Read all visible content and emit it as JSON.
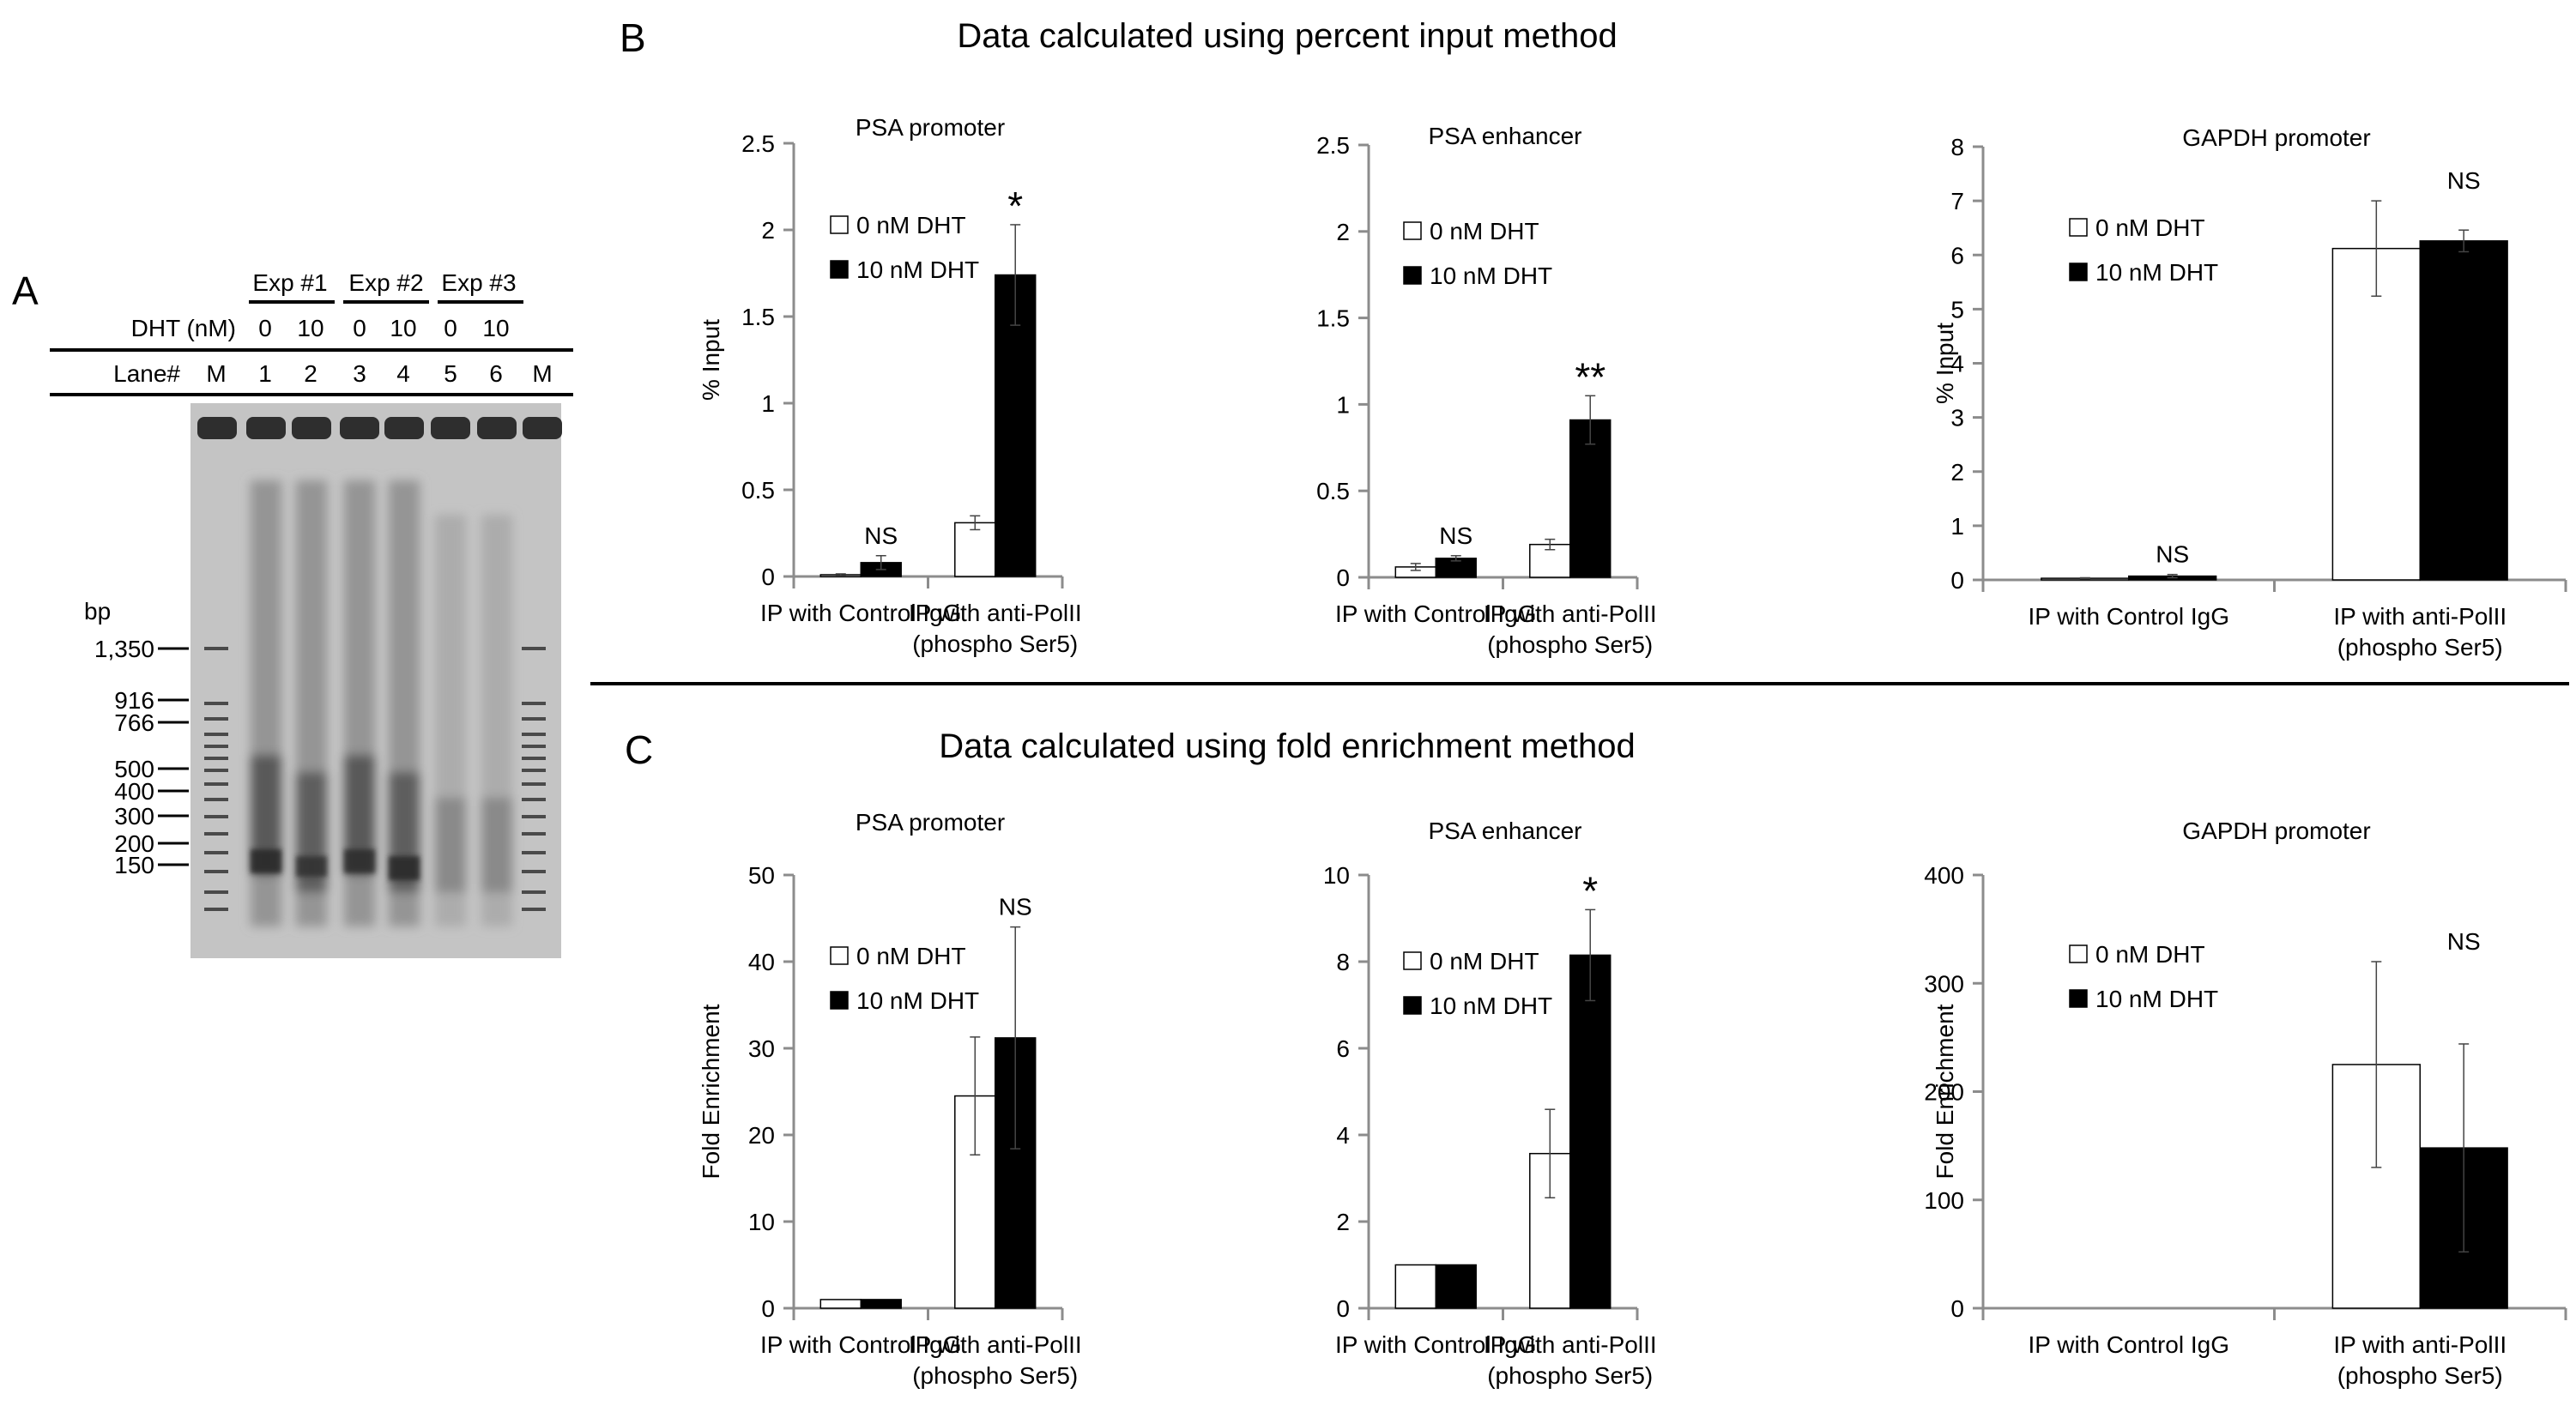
{
  "panels": {
    "a": "A",
    "b": "B",
    "c": "C"
  },
  "section_titles": {
    "b": "Data calculated using percent input method",
    "c": "Data calculated using fold enrichment method"
  },
  "colors": {
    "bar_0nM": "#ffffff",
    "bar_10nM": "#000000",
    "axis": "#8c8c8c",
    "gel_background": "#c2c2c2"
  },
  "gel": {
    "header_experiments": [
      "Exp #1",
      "Exp #2",
      "Exp #3"
    ],
    "dht_label": "DHT (nM)",
    "dht_values": [
      "0",
      "10",
      "0",
      "10",
      "0",
      "10"
    ],
    "lane_label": "Lane#",
    "lanes": [
      "M",
      "1",
      "2",
      "3",
      "4",
      "5",
      "6",
      "M"
    ],
    "bp_label": "bp",
    "markers": [
      "1,350",
      "916",
      "766",
      "500",
      "400",
      "300",
      "200",
      "150"
    ]
  },
  "chart_data": [
    {
      "id": "b1",
      "type": "bar",
      "title": "PSA promoter",
      "xlabel": "",
      "ylabel": "% Input",
      "ylim": [
        0,
        2.5
      ],
      "yticks": [
        "0",
        "0.5",
        "1",
        "1.5",
        "2",
        "2.5"
      ],
      "tick_values": [
        0,
        0.5,
        1,
        1.5,
        2,
        2.5
      ],
      "categories": [
        "IP with Control IgG",
        "IP with anti-PolII (phospho Ser5)"
      ],
      "category_lines": [
        [
          "IP with Control IgG"
        ],
        [
          "IP with anti-PolII",
          "(phospho Ser5)"
        ]
      ],
      "series": [
        {
          "name": "0 nM DHT",
          "values": [
            0.01,
            0.31
          ],
          "errors": [
            0.005,
            0.04
          ]
        },
        {
          "name": "10 nM DHT",
          "values": [
            0.08,
            1.74
          ],
          "errors": [
            0.04,
            0.29
          ]
        }
      ],
      "annotations": [
        {
          "text": "NS",
          "category": 0,
          "kind": "ns"
        },
        {
          "text": "*",
          "category": 1,
          "kind": "star"
        }
      ]
    },
    {
      "id": "b2",
      "type": "bar",
      "title": "PSA enhancer",
      "xlabel": "",
      "ylabel": "",
      "ylim": [
        0,
        2.5
      ],
      "yticks": [
        "0",
        "0.5",
        "1",
        "1.5",
        "2",
        "2.5"
      ],
      "tick_values": [
        0,
        0.5,
        1,
        1.5,
        2,
        2.5
      ],
      "categories": [
        "IP with Control IgG",
        "IP with anti-PolII (phospho Ser5)"
      ],
      "category_lines": [
        [
          "IP with Control IgG"
        ],
        [
          "IP with anti-PolII",
          "(phospho Ser5)"
        ]
      ],
      "series": [
        {
          "name": "0 nM DHT",
          "values": [
            0.06,
            0.19
          ],
          "errors": [
            0.02,
            0.03
          ]
        },
        {
          "name": "10 nM DHT",
          "values": [
            0.11,
            0.91
          ],
          "errors": [
            0.015,
            0.14
          ]
        }
      ],
      "annotations": [
        {
          "text": "NS",
          "category": 0,
          "kind": "ns"
        },
        {
          "text": "**",
          "category": 1,
          "kind": "star"
        }
      ]
    },
    {
      "id": "b3",
      "type": "bar",
      "title": "GAPDH promoter",
      "xlabel": "",
      "ylabel": "% Input",
      "ylim": [
        0,
        8
      ],
      "yticks": [
        "0",
        "1",
        "2",
        "3",
        "4",
        "5",
        "6",
        "7",
        "8"
      ],
      "tick_values": [
        0,
        1,
        2,
        3,
        4,
        5,
        6,
        7,
        8
      ],
      "categories": [
        "IP with Control IgG",
        "IP with anti-PolII (phospho Ser5)"
      ],
      "category_lines": [
        [
          "IP with Control IgG"
        ],
        [
          "IP with anti-PolII",
          "(phospho Ser5)"
        ]
      ],
      "series": [
        {
          "name": "0 nM DHT",
          "values": [
            0.03,
            6.12
          ],
          "errors": [
            0.01,
            0.88
          ]
        },
        {
          "name": "10 nM DHT",
          "values": [
            0.07,
            6.26
          ],
          "errors": [
            0.03,
            0.2
          ]
        }
      ],
      "annotations": [
        {
          "text": "NS",
          "category": 0,
          "kind": "ns"
        },
        {
          "text": "NS",
          "category": 1,
          "kind": "ns"
        }
      ]
    },
    {
      "id": "c1",
      "type": "bar",
      "title": "PSA promoter",
      "xlabel": "",
      "ylabel": "Fold Enrichment",
      "ylim": [
        0,
        50
      ],
      "yticks": [
        "0",
        "10",
        "20",
        "30",
        "40",
        "50"
      ],
      "tick_values": [
        0,
        10,
        20,
        30,
        40,
        50
      ],
      "categories": [
        "IP with Control IgG",
        "IP with anti-PolII (phospho Ser5)"
      ],
      "category_lines": [
        [
          "IP with Control IgG"
        ],
        [
          "IP with anti-PolII",
          "(phospho Ser5)"
        ]
      ],
      "series": [
        {
          "name": "0 nM DHT",
          "values": [
            1,
            24.5
          ],
          "errors": [
            0,
            6.8
          ]
        },
        {
          "name": "10 nM DHT",
          "values": [
            1,
            31.2
          ],
          "errors": [
            0,
            12.8
          ]
        }
      ],
      "annotations": [
        {
          "text": "NS",
          "category": 1,
          "kind": "ns"
        }
      ]
    },
    {
      "id": "c2",
      "type": "bar",
      "title": "PSA enhancer",
      "xlabel": "",
      "ylabel": "",
      "ylim": [
        0,
        10
      ],
      "yticks": [
        "0",
        "2",
        "4",
        "6",
        "8",
        "10"
      ],
      "tick_values": [
        0,
        2,
        4,
        6,
        8,
        10
      ],
      "categories": [
        "IP with Control IgG",
        "IP with anti-PolII (phospho Ser5)"
      ],
      "category_lines": [
        [
          "IP with Control IgG"
        ],
        [
          "IP with anti-PolII",
          "(phospho Ser5)"
        ]
      ],
      "series": [
        {
          "name": "0 nM DHT",
          "values": [
            1,
            3.57
          ],
          "errors": [
            0,
            1.02
          ]
        },
        {
          "name": "10 nM DHT",
          "values": [
            1,
            8.15
          ],
          "errors": [
            0,
            1.05
          ]
        }
      ],
      "annotations": [
        {
          "text": "*",
          "category": 1,
          "kind": "star"
        }
      ]
    },
    {
      "id": "c3",
      "type": "bar",
      "title": "GAPDH promoter",
      "xlabel": "",
      "ylabel": "Fold Enrichment",
      "ylim": [
        0,
        400
      ],
      "yticks": [
        "0",
        "100",
        "200",
        "300",
        "400"
      ],
      "tick_values": [
        0,
        100,
        200,
        300,
        400
      ],
      "categories": [
        "IP with Control IgG",
        "IP with anti-PolII (phospho Ser5)"
      ],
      "category_lines": [
        [
          "IP with Control IgG"
        ],
        [
          "IP with anti-PolII",
          "(phospho Ser5)"
        ]
      ],
      "series": [
        {
          "name": "0 nM DHT",
          "values": [
            0,
            225
          ],
          "errors": [
            0,
            95
          ]
        },
        {
          "name": "10 nM DHT",
          "values": [
            0,
            148
          ],
          "errors": [
            0,
            96
          ]
        }
      ],
      "annotations": [
        {
          "text": "NS",
          "category": 1,
          "kind": "ns"
        }
      ]
    }
  ]
}
